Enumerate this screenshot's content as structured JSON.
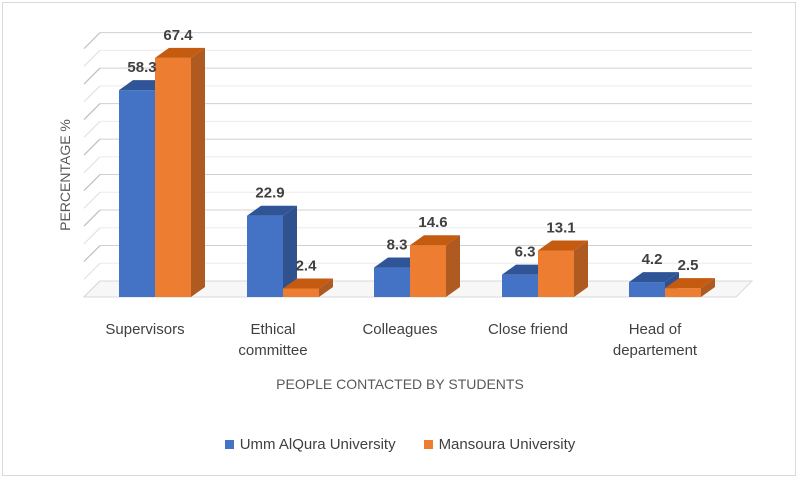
{
  "chart_data": {
    "type": "bar",
    "categories": [
      [
        "Supervisors"
      ],
      [
        "Ethical",
        "committee"
      ],
      [
        "Colleagues"
      ],
      [
        "Close friend"
      ],
      [
        "Head of",
        "departement"
      ]
    ],
    "series": [
      {
        "name": "Umm AlQura University",
        "values": [
          58.3,
          22.9,
          8.3,
          6.3,
          4.2
        ],
        "color": "#4472c4",
        "side": "#2f528f",
        "top": "#2f5597"
      },
      {
        "name": "Mansoura University",
        "values": [
          67.4,
          2.4,
          14.6,
          13.1,
          2.5
        ],
        "color": "#ed7d31",
        "side": "#ae5a21",
        "top": "#c55a11"
      }
    ],
    "value_labels": [
      [
        "58.3",
        "22.9",
        "8.3",
        "6.3",
        "4.2"
      ],
      [
        "67.4",
        "2.4",
        "14.6",
        "13.1",
        "2.5"
      ]
    ],
    "xlabel": "PEOPLE CONTACTED BY STUDENTS",
    "ylabel": "PERCENTAGE %",
    "ylim": [
      0,
      70
    ],
    "grid": true,
    "legend_position": "bottom"
  }
}
